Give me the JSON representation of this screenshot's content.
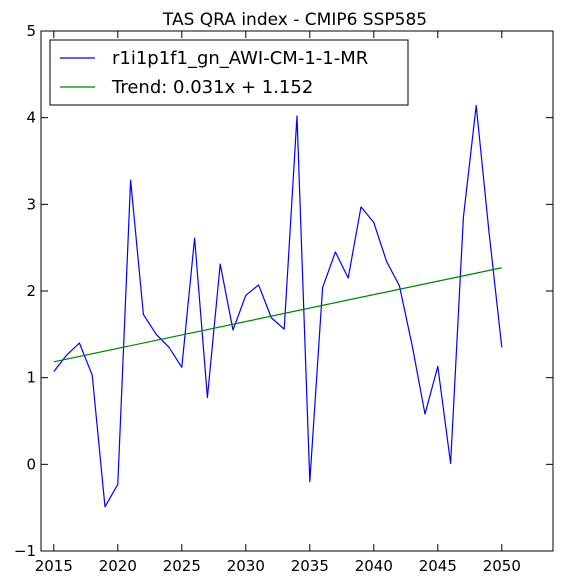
{
  "chart_data": {
    "type": "line",
    "title": "TAS QRA index - CMIP6 SSP585",
    "xlabel": "",
    "ylabel": "",
    "xlim": [
      2014,
      2054
    ],
    "ylim": [
      -1,
      5
    ],
    "xticks": [
      2015,
      2020,
      2025,
      2030,
      2035,
      2040,
      2045,
      2050
    ],
    "yticks": [
      -1,
      0,
      1,
      2,
      3,
      4,
      5
    ],
    "legend_position": "top-left",
    "grid": false,
    "series": [
      {
        "name": "r1i1p1f1_gn_AWI-CM-1-1-MR",
        "color": "#0000ff",
        "x": [
          2015,
          2016,
          2017,
          2018,
          2019,
          2020,
          2021,
          2022,
          2023,
          2024,
          2025,
          2026,
          2027,
          2028,
          2029,
          2030,
          2031,
          2032,
          2033,
          2034,
          2035,
          2036,
          2037,
          2038,
          2039,
          2040,
          2041,
          2042,
          2043,
          2044,
          2045,
          2046,
          2047,
          2048,
          2049,
          2050
        ],
        "y": [
          1.07,
          1.26,
          1.4,
          1.03,
          -0.49,
          -0.23,
          3.28,
          1.73,
          1.5,
          1.35,
          1.12,
          2.61,
          0.77,
          2.31,
          1.55,
          1.95,
          2.07,
          1.69,
          1.56,
          4.02,
          -0.2,
          2.04,
          2.45,
          2.15,
          2.97,
          2.79,
          2.34,
          2.06,
          1.37,
          0.58,
          1.13,
          0.01,
          2.85,
          4.14,
          2.68,
          1.35
        ]
      },
      {
        "name": "Trend: 0.031x + 1.152",
        "color": "#008000",
        "x": [
          2015,
          2050
        ],
        "y": [
          1.183,
          2.268
        ]
      }
    ]
  }
}
